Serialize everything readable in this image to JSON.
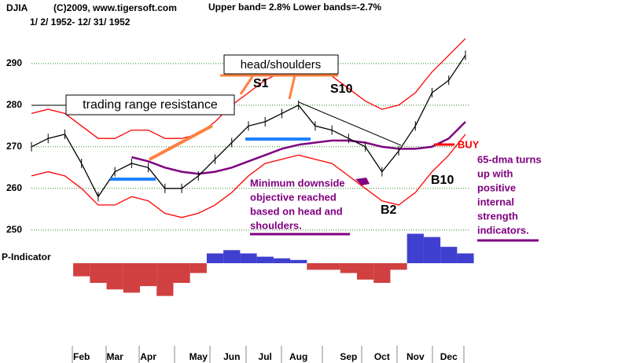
{
  "header": {
    "symbol": "DJIA",
    "copyright": "(C)2009, www.tigersoft.com",
    "range": "1/ 2/ 1952- 12/ 31/ 1952",
    "bands": "Upper band= 2.8%  Lower bands=-2.7%"
  },
  "chart_data": {
    "type": "line",
    "categories": [
      null,
      null,
      null,
      "Feb",
      null,
      "Mar",
      null,
      "Apr",
      null,
      null,
      "May",
      null,
      "Jun",
      null,
      "Jul",
      null,
      "Aug",
      null,
      null,
      "Sep",
      null,
      "Oct",
      null,
      "Nov",
      null,
      "Dec",
      null
    ],
    "ylim": [
      249,
      301.5
    ],
    "yticks": [
      250,
      260,
      270,
      280,
      290
    ],
    "grid": true,
    "series": [
      {
        "color": "#ff0000",
        "values": [
          278,
          279,
          278,
          275,
          272,
          272,
          274,
          274,
          272,
          272,
          273,
          276,
          280,
          283,
          286,
          288,
          289,
          288,
          287,
          284,
          281,
          279,
          280,
          283,
          288,
          292,
          296
        ]
      },
      {
        "color": "#ff0000",
        "values": [
          263,
          264,
          263,
          260,
          256,
          256,
          258,
          257,
          254,
          253,
          254,
          256,
          259,
          263,
          266,
          267,
          268,
          267,
          266,
          263,
          260,
          257,
          256,
          259,
          264,
          268,
          273
        ]
      },
      {
        "color": "#800080",
        "values": [
          null,
          null,
          null,
          null,
          null,
          null,
          267.5,
          266.5,
          265,
          264,
          263.5,
          264,
          265,
          266.5,
          268,
          269.5,
          270.5,
          271,
          271.5,
          271.5,
          271,
          270,
          269.5,
          269.5,
          270,
          272,
          276
        ]
      },
      {
        "color": "#000000",
        "values": [
          270,
          272,
          273,
          266,
          258,
          264,
          266,
          265,
          260,
          260,
          263,
          267,
          271,
          275,
          276,
          278,
          280,
          275,
          274,
          272,
          270,
          264,
          269,
          275,
          283,
          286,
          292
        ]
      }
    ],
    "indicator": {
      "label": "P-Indicator",
      "up_color": "#0000c0",
      "down_color": "#c00000",
      "ylim": [
        -1.2,
        0.6
      ],
      "values": [
        null,
        null,
        null,
        -0.4,
        -0.6,
        -0.8,
        -0.9,
        -0.7,
        -1.0,
        -0.6,
        -0.3,
        0.3,
        0.4,
        0.3,
        0.2,
        0.15,
        0.1,
        -0.2,
        -0.2,
        -0.3,
        -0.5,
        -0.6,
        -0.2,
        0.9,
        0.8,
        0.5,
        0.3
      ]
    },
    "annotations": {
      "head_shoulders": "head/shoulders",
      "resistance": "trading range resistance",
      "s1": "S1",
      "s10": "S10",
      "b2": "B2",
      "b10": "B10",
      "buy": "BUY",
      "objective": [
        "Minimum downside",
        "objective reached",
        "based on head and",
        "shoulders."
      ],
      "dma": [
        "65-dma turns",
        "up with",
        "positive",
        "internal",
        "strength",
        "indicators."
      ]
    }
  }
}
